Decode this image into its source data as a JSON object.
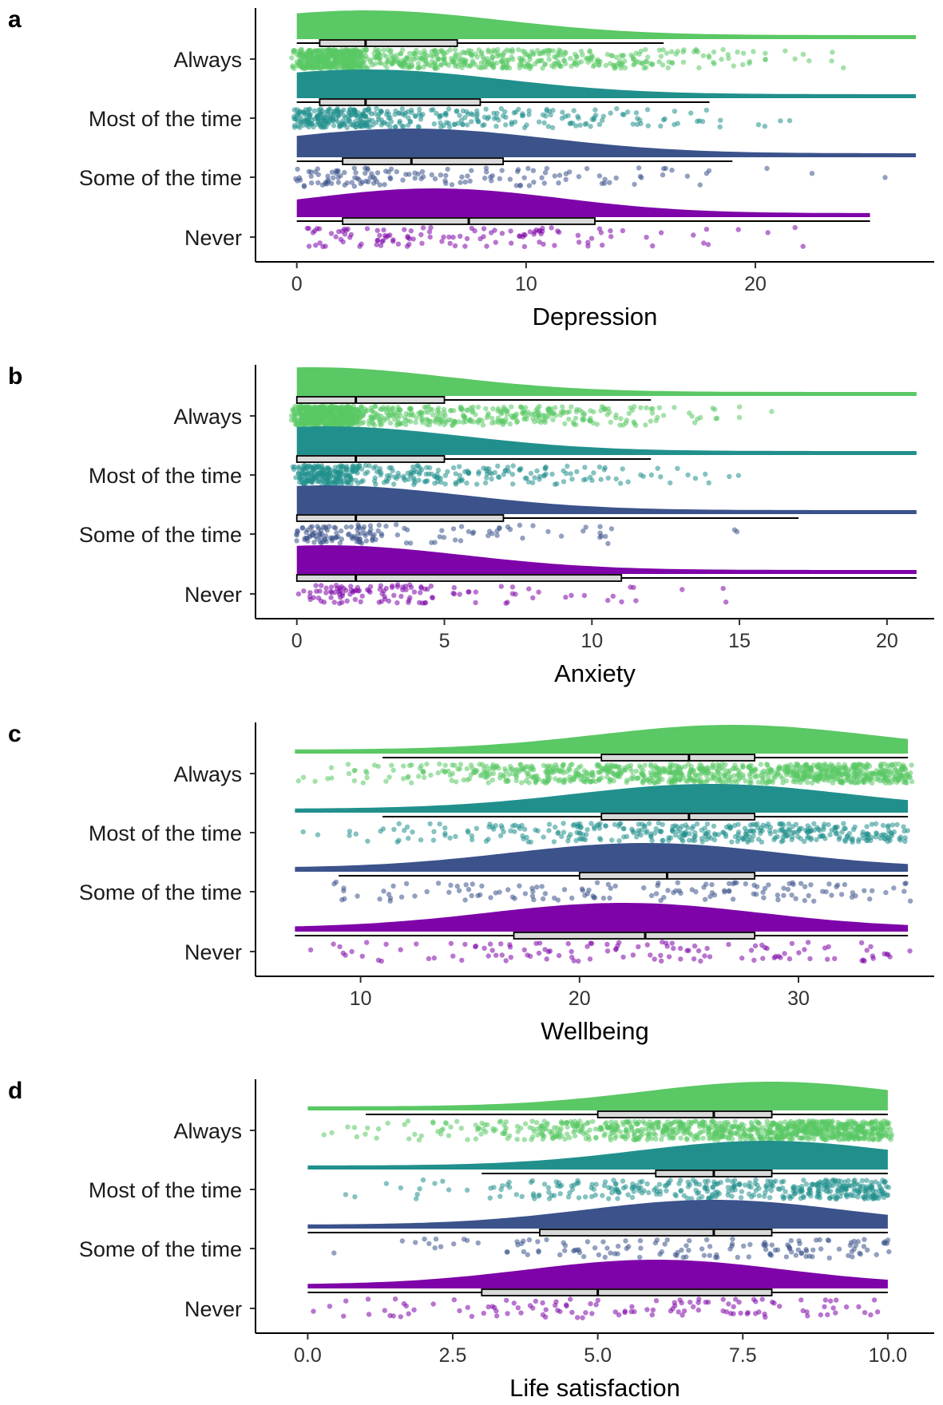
{
  "colors": {
    "Always": "#5ac864",
    "Most of the time": "#21908d",
    "Some of the time": "#3b528b",
    "Never": "#7e03a8"
  },
  "chart_data": [
    {
      "panel": "a",
      "type": "raincloud",
      "xlabel": "Depression",
      "xlim": [
        -1.8,
        27.8
      ],
      "xticks": [
        0,
        10,
        20
      ],
      "xtick_labels": [
        "0",
        "10",
        "20"
      ],
      "categories": [
        "Always",
        "Most of the time",
        "Some of the time",
        "Never"
      ],
      "series": [
        {
          "name": "Always",
          "min": 0,
          "q1": 1,
          "median": 3,
          "q3": 7,
          "whisker_high": 16,
          "max": 27,
          "mode": 3
        },
        {
          "name": "Most of the time",
          "min": 0,
          "q1": 1,
          "median": 3,
          "q3": 8,
          "whisker_high": 18,
          "max": 27,
          "mode": 3
        },
        {
          "name": "Some of the time",
          "min": 0,
          "q1": 2,
          "median": 5,
          "q3": 9,
          "whisker_high": 19,
          "max": 27,
          "mode": 5
        },
        {
          "name": "Never",
          "min": 0,
          "q1": 2,
          "median": 7.5,
          "q3": 13,
          "whisker_high": 25,
          "max": 25,
          "mode": 6
        }
      ]
    },
    {
      "panel": "b",
      "type": "raincloud",
      "xlabel": "Anxiety",
      "xlim": [
        -1.4,
        21.6
      ],
      "xticks": [
        0,
        5,
        10,
        15,
        20
      ],
      "xtick_labels": [
        "0",
        "5",
        "10",
        "15",
        "20"
      ],
      "categories": [
        "Always",
        "Most of the time",
        "Some of the time",
        "Never"
      ],
      "series": [
        {
          "name": "Always",
          "min": 0,
          "q1": 0,
          "median": 2,
          "q3": 5,
          "whisker_high": 12,
          "max": 21,
          "mode": 0.5
        },
        {
          "name": "Most of the time",
          "min": 0,
          "q1": 0,
          "median": 2,
          "q3": 5,
          "whisker_high": 12,
          "max": 21,
          "mode": 1
        },
        {
          "name": "Some of the time",
          "min": 0,
          "q1": 0,
          "median": 2,
          "q3": 7,
          "whisker_high": 17,
          "max": 21,
          "mode": 1
        },
        {
          "name": "Never",
          "min": 0,
          "q1": 0,
          "median": 2,
          "q3": 11,
          "whisker_high": 21,
          "max": 21,
          "mode": 1
        }
      ]
    },
    {
      "panel": "c",
      "type": "raincloud",
      "xlabel": "Wellbeing",
      "xlim": [
        5.2,
        36.2
      ],
      "xticks": [
        10,
        20,
        30
      ],
      "xtick_labels": [
        "10",
        "20",
        "30"
      ],
      "categories": [
        "Always",
        "Most of the time",
        "Some of the time",
        "Never"
      ],
      "series": [
        {
          "name": "Always",
          "min": 7,
          "q1": 21,
          "median": 25,
          "q3": 28,
          "whisker_low": 11,
          "max": 35,
          "mode": 27
        },
        {
          "name": "Most of the time",
          "min": 7,
          "q1": 21,
          "median": 25,
          "q3": 28,
          "whisker_low": 11,
          "max": 35,
          "mode": 26
        },
        {
          "name": "Some of the time",
          "min": 7,
          "q1": 20,
          "median": 24,
          "q3": 28,
          "whisker_low": 9,
          "max": 35,
          "mode": 23
        },
        {
          "name": "Never",
          "min": 7,
          "q1": 17,
          "median": 23,
          "q3": 28,
          "whisker_low": 7,
          "max": 35,
          "mode": 22
        }
      ]
    },
    {
      "panel": "d",
      "type": "raincloud",
      "xlabel": "Life satisfaction",
      "xlim": [
        -0.9,
        10.8
      ],
      "xticks": [
        0,
        2.5,
        5,
        7.5,
        10
      ],
      "xtick_labels": [
        "0.0",
        "2.5",
        "5.0",
        "7.5",
        "10.0"
      ],
      "categories": [
        "Always",
        "Most of the time",
        "Some of the time",
        "Never"
      ],
      "series": [
        {
          "name": "Always",
          "min": 0,
          "q1": 5,
          "median": 7,
          "q3": 8,
          "whisker_low": 1,
          "max": 10,
          "mode": 8
        },
        {
          "name": "Most of the time",
          "min": 0,
          "q1": 6,
          "median": 7,
          "q3": 8,
          "whisker_low": 3,
          "max": 10,
          "mode": 7.9
        },
        {
          "name": "Some of the time",
          "min": 0,
          "q1": 4,
          "median": 7,
          "q3": 8,
          "whisker_low": 0,
          "max": 10,
          "mode": 7
        },
        {
          "name": "Never",
          "min": 0,
          "q1": 3,
          "median": 5,
          "q3": 8,
          "whisker_low": 0,
          "max": 10,
          "mode": 6
        }
      ]
    }
  ]
}
